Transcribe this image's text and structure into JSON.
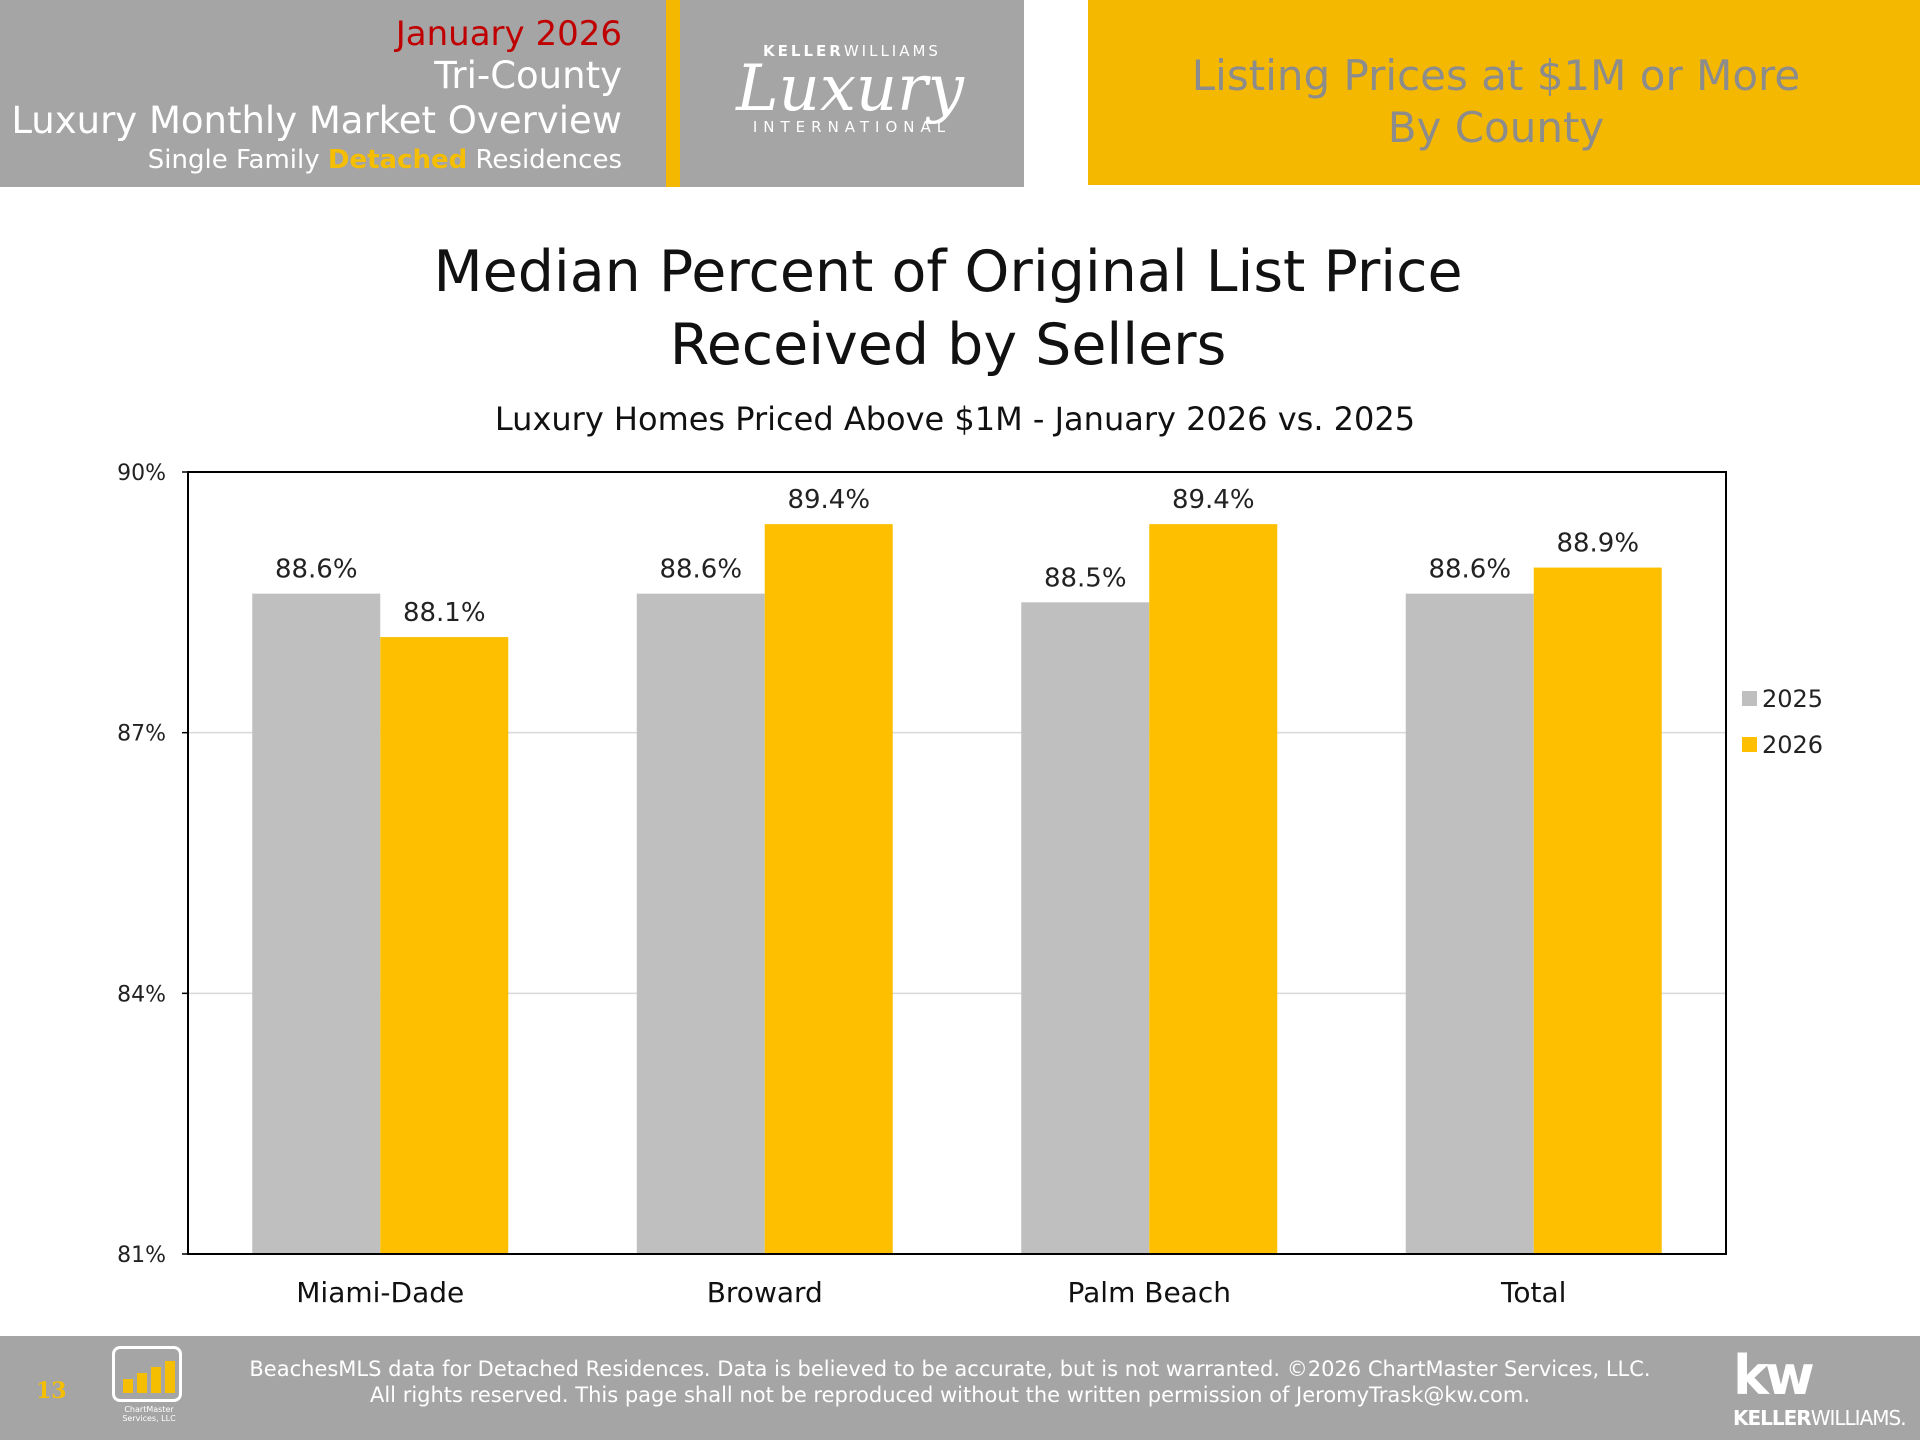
{
  "header": {
    "date": "January 2026",
    "region": "Tri-County",
    "report_name": "Luxury Monthly Market Overview",
    "segment_prefix": "Single Family ",
    "segment_highlight": "Detached",
    "segment_suffix": " Residences",
    "logo_top_bold": "KELLER",
    "logo_top_rest": "WILLIAMS",
    "logo_script": "Luxury",
    "logo_bottom": "INTERNATIONAL",
    "right_title_line1": "Listing Prices at $1M or More",
    "right_title_line2": "By County"
  },
  "chart_data": {
    "type": "bar",
    "title_line1": "Median Percent of Original List Price",
    "title_line2": "Received by Sellers",
    "subtitle": "Luxury Homes Priced Above $1M - January 2026 vs. 2025",
    "categories": [
      "Miami-Dade",
      "Broward",
      "Palm Beach",
      "Total"
    ],
    "series": [
      {
        "name": "2025",
        "values": [
          88.6,
          88.6,
          88.5,
          88.6
        ],
        "labels": [
          "88.6%",
          "88.6%",
          "88.5%",
          "88.6%"
        ],
        "color": "#bfbfbf"
      },
      {
        "name": "2026",
        "values": [
          88.1,
          89.4,
          89.4,
          88.9
        ],
        "labels": [
          "88.1%",
          "89.4%",
          "89.4%",
          "88.9%"
        ],
        "color": "#fdbf00"
      }
    ],
    "ylim": [
      81,
      90
    ],
    "yticks": [
      81,
      84,
      87,
      90
    ],
    "ytick_labels": [
      "81%",
      "84%",
      "87%",
      "90%"
    ],
    "grid": true,
    "legend_position": "right"
  },
  "footer": {
    "page_number": "13",
    "chartmaster_label": "ChartMaster Services, LLC",
    "disclaimer_line1": "BeachesMLS data for Detached Residences.  Data is believed to be accurate, but is not warranted.   ©2026  ChartMaster Services, LLC.",
    "disclaimer_line2": "All rights reserved. This page shall not be reproduced without the written permission of JeromyTrask@kw.com.",
    "kw_mark": "kw",
    "kw_name_bold": "KELLER",
    "kw_name_rest": "WILLIAMS."
  },
  "colors": {
    "header_gray": "#a5a5a5",
    "accent_gold": "#f5b800",
    "date_red": "#c00000"
  }
}
